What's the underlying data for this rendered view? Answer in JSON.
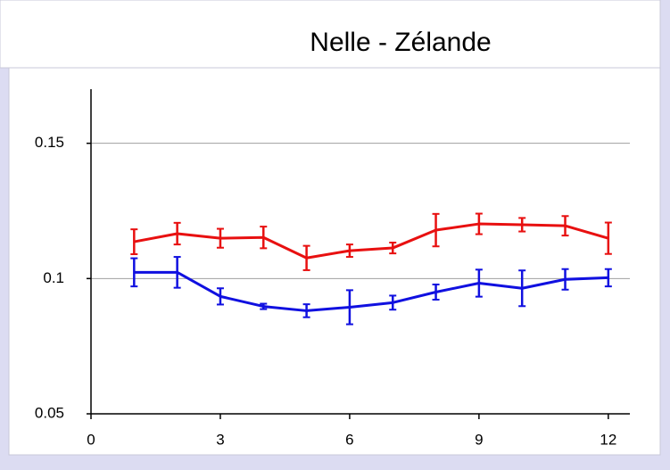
{
  "chart_data": {
    "type": "line",
    "title": "Nelle - Zélande",
    "x": [
      1,
      2,
      3,
      4,
      5,
      6,
      7,
      8,
      9,
      10,
      11,
      12
    ],
    "series": [
      {
        "color": "#e81010",
        "values": [
          0.1136,
          0.1166,
          0.1149,
          0.1152,
          0.1076,
          0.1103,
          0.1113,
          0.1179,
          0.1202,
          0.1199,
          0.1195,
          0.1149
        ],
        "errors": [
          0.0046,
          0.004,
          0.0035,
          0.004,
          0.0045,
          0.0023,
          0.002,
          0.006,
          0.0038,
          0.0025,
          0.0036,
          0.0058
        ]
      },
      {
        "color": "#1010e0",
        "values": [
          0.1023,
          0.1023,
          0.0934,
          0.0897,
          0.0881,
          0.0894,
          0.0911,
          0.095,
          0.0983,
          0.0964,
          0.0997,
          0.1003
        ],
        "errors": [
          0.0052,
          0.0057,
          0.003,
          0.001,
          0.0024,
          0.0063,
          0.0026,
          0.0028,
          0.005,
          0.0066,
          0.0038,
          0.0032
        ]
      }
    ],
    "xlim": [
      0,
      12.5
    ],
    "ylim": [
      0.05,
      0.17
    ],
    "xticks": [
      0,
      3,
      6,
      9,
      12
    ],
    "yticks": [
      0.05,
      0.1,
      0.15
    ],
    "grid": true
  }
}
